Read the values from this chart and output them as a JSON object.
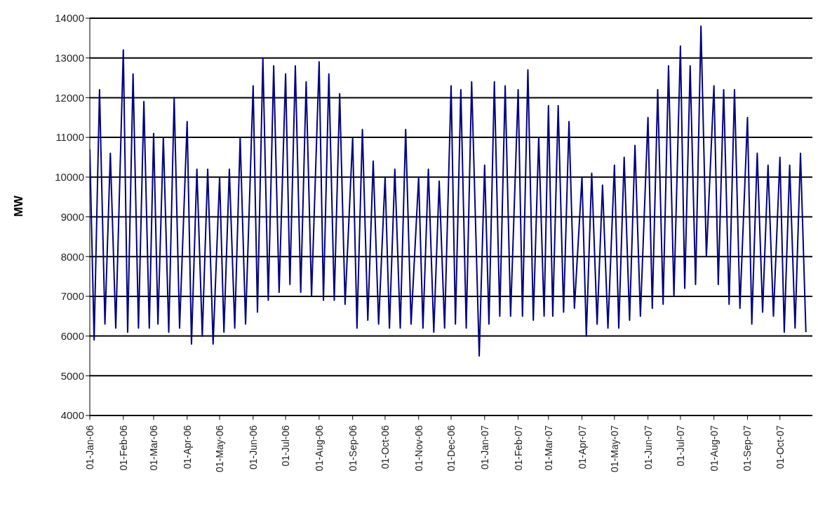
{
  "chart_data": {
    "type": "line",
    "ylabel": "MW",
    "x": [
      "2006-01-01",
      "2006-01-05",
      "2006-01-10",
      "2006-01-15",
      "2006-01-20",
      "2006-01-25",
      "2006-02-01",
      "2006-02-05",
      "2006-02-10",
      "2006-02-15",
      "2006-02-20",
      "2006-02-25",
      "2006-03-01",
      "2006-03-05",
      "2006-03-10",
      "2006-03-15",
      "2006-03-20",
      "2006-03-25",
      "2006-04-01",
      "2006-04-05",
      "2006-04-10",
      "2006-04-15",
      "2006-04-20",
      "2006-04-25",
      "2006-05-01",
      "2006-05-05",
      "2006-05-10",
      "2006-05-15",
      "2006-05-20",
      "2006-05-25",
      "2006-06-01",
      "2006-06-05",
      "2006-06-10",
      "2006-06-15",
      "2006-06-20",
      "2006-06-25",
      "2006-07-01",
      "2006-07-05",
      "2006-07-10",
      "2006-07-15",
      "2006-07-20",
      "2006-07-25",
      "2006-08-01",
      "2006-08-05",
      "2006-08-10",
      "2006-08-15",
      "2006-08-20",
      "2006-08-25",
      "2006-09-01",
      "2006-09-05",
      "2006-09-10",
      "2006-09-15",
      "2006-09-20",
      "2006-09-25",
      "2006-10-01",
      "2006-10-05",
      "2006-10-10",
      "2006-10-15",
      "2006-10-20",
      "2006-10-25",
      "2006-11-01",
      "2006-11-05",
      "2006-11-10",
      "2006-11-15",
      "2006-11-20",
      "2006-11-25",
      "2006-12-01",
      "2006-12-05",
      "2006-12-10",
      "2006-12-15",
      "2006-12-20",
      "2006-12-27",
      "2007-01-01",
      "2007-01-05",
      "2007-01-10",
      "2007-01-15",
      "2007-01-20",
      "2007-01-25",
      "2007-02-01",
      "2007-02-05",
      "2007-02-10",
      "2007-02-15",
      "2007-02-20",
      "2007-02-25",
      "2007-03-01",
      "2007-03-05",
      "2007-03-10",
      "2007-03-15",
      "2007-03-20",
      "2007-03-25",
      "2007-04-01",
      "2007-04-05",
      "2007-04-10",
      "2007-04-15",
      "2007-04-20",
      "2007-04-25",
      "2007-05-01",
      "2007-05-05",
      "2007-05-10",
      "2007-05-15",
      "2007-05-20",
      "2007-05-25",
      "2007-06-01",
      "2007-06-05",
      "2007-06-10",
      "2007-06-15",
      "2007-06-20",
      "2007-06-25",
      "2007-07-01",
      "2007-07-05",
      "2007-07-10",
      "2007-07-15",
      "2007-07-20",
      "2007-07-25",
      "2007-08-01",
      "2007-08-05",
      "2007-08-10",
      "2007-08-15",
      "2007-08-20",
      "2007-08-25",
      "2007-09-01",
      "2007-09-05",
      "2007-09-10",
      "2007-09-15",
      "2007-09-20",
      "2007-09-25",
      "2007-10-01",
      "2007-10-05",
      "2007-10-10",
      "2007-10-15",
      "2007-10-20",
      "2007-10-25"
    ],
    "series": [
      {
        "color": "#000080",
        "values": [
          10700,
          5900,
          12200,
          6300,
          10600,
          6200,
          13200,
          6100,
          12600,
          6200,
          11900,
          6200,
          11100,
          6300,
          11000,
          6100,
          12000,
          6200,
          11400,
          5800,
          10200,
          6000,
          10200,
          5800,
          10000,
          6100,
          10200,
          6200,
          11000,
          6300,
          12300,
          6600,
          13000,
          6900,
          12800,
          7100,
          12600,
          7300,
          12800,
          7100,
          12400,
          7000,
          12900,
          6900,
          12600,
          6900,
          12100,
          6800,
          11000,
          6200,
          11200,
          6400,
          10400,
          6300,
          10000,
          6200,
          10200,
          6200,
          11200,
          6300,
          10000,
          6200,
          10200,
          6100,
          9900,
          6200,
          12300,
          6300,
          12200,
          6200,
          12400,
          5500,
          10300,
          6300,
          12400,
          6500,
          12300,
          6500,
          12200,
          6500,
          12700,
          6400,
          11000,
          6500,
          11800,
          6500,
          11800,
          6600,
          11400,
          6700,
          10000,
          6000,
          10100,
          6300,
          9800,
          6200,
          10300,
          6200,
          10500,
          6400,
          10800,
          6500,
          11500,
          6700,
          12200,
          6800,
          12800,
          7000,
          13300,
          7200,
          12800,
          7300,
          13800,
          8000,
          12300,
          7300,
          12200,
          6800,
          12200,
          6700,
          11500,
          6300,
          10600,
          6600,
          10300,
          6500,
          10500,
          6100,
          10300,
          6200,
          10600,
          6100
        ]
      }
    ],
    "xlim": [
      "2006-01-01",
      "2007-10-31"
    ],
    "xticks": [
      {
        "value": "2006-01-01",
        "label": "01-Jan-06"
      },
      {
        "value": "2006-02-01",
        "label": "01-Feb-06"
      },
      {
        "value": "2006-03-01",
        "label": "01-Mar-06"
      },
      {
        "value": "2006-04-01",
        "label": "01-Apr-06"
      },
      {
        "value": "2006-05-01",
        "label": "01-May-06"
      },
      {
        "value": "2006-06-01",
        "label": "01-Jun-06"
      },
      {
        "value": "2006-07-01",
        "label": "01-Jul-06"
      },
      {
        "value": "2006-08-01",
        "label": "01-Aug-06"
      },
      {
        "value": "2006-09-01",
        "label": "01-Sep-06"
      },
      {
        "value": "2006-10-01",
        "label": "01-Oct-06"
      },
      {
        "value": "2006-11-01",
        "label": "01-Nov-06"
      },
      {
        "value": "2006-12-01",
        "label": "01-Dec-06"
      },
      {
        "value": "2007-01-01",
        "label": "01-Jan-07"
      },
      {
        "value": "2007-02-01",
        "label": "01-Feb-07"
      },
      {
        "value": "2007-03-01",
        "label": "01-Mar-07"
      },
      {
        "value": "2007-04-01",
        "label": "01-Apr-07"
      },
      {
        "value": "2007-05-01",
        "label": "01-May-07"
      },
      {
        "value": "2007-06-01",
        "label": "01-Jun-07"
      },
      {
        "value": "2007-07-01",
        "label": "01-Jul-07"
      },
      {
        "value": "2007-08-01",
        "label": "01-Aug-07"
      },
      {
        "value": "2007-09-01",
        "label": "01-Sep-07"
      },
      {
        "value": "2007-10-01",
        "label": "01-Oct-07"
      }
    ],
    "ylim": [
      4000,
      14000
    ],
    "yticks": [
      4000,
      5000,
      6000,
      7000,
      8000,
      9000,
      10000,
      11000,
      12000,
      13000,
      14000
    ],
    "grid": "y",
    "legend": false,
    "marker": "none",
    "line_style": "solid"
  }
}
